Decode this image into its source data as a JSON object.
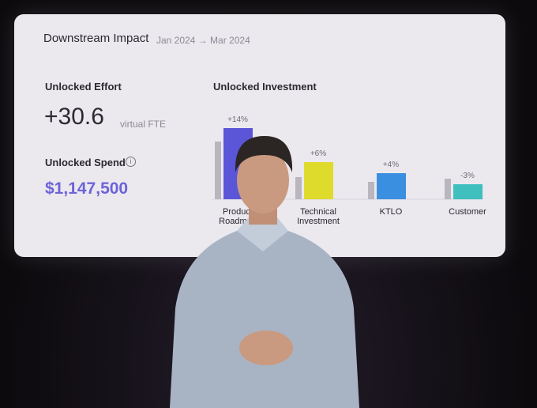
{
  "header": {
    "title": "Downstream Impact",
    "period": "Jan 2024 → Mar 2024"
  },
  "metrics": [
    {
      "label": "Unlocked Effort",
      "value": "+30.6",
      "unit": "virtual FTE"
    },
    {
      "label": "Unlocked Spend",
      "value": "$1,147,500"
    }
  ],
  "chart_data": {
    "type": "bar",
    "title": "Unlocked Investment",
    "categories": [
      "Product Roadmap",
      "Technical Investment",
      "KTLO",
      "Customer"
    ],
    "series": [
      {
        "color": "#b9b6bf",
        "values": [
          73,
          28,
          22,
          26
        ]
      },
      {
        "colors": [
          "#5b55d8",
          "#dedb2c",
          "#3b8fe0",
          "#3fbfbd"
        ],
        "values": [
          90,
          47,
          33,
          19
        ]
      }
    ],
    "change_values": [
      14,
      6,
      4,
      -3
    ],
    "change_labels": [
      "+14%",
      "+6%",
      "+4%",
      "-3%"
    ]
  }
}
